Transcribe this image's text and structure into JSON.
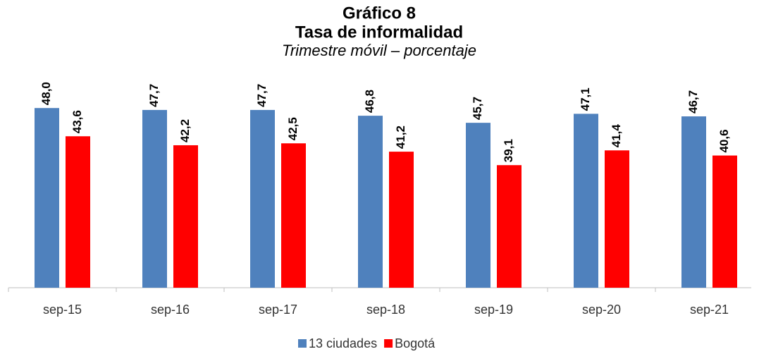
{
  "chart_data": {
    "type": "bar",
    "title": "Gráfico 8",
    "subtitle": "Tasa de informalidad",
    "note": "Trimestre móvil – porcentaje",
    "categories": [
      "sep-15",
      "sep-16",
      "sep-17",
      "sep-18",
      "sep-19",
      "sep-20",
      "sep-21"
    ],
    "series": [
      {
        "name": "13 ciudades",
        "color": "#4f81bd",
        "values": [
          48.0,
          47.7,
          47.7,
          46.8,
          45.7,
          47.1,
          46.7
        ],
        "value_labels": [
          "48,0",
          "47,7",
          "47,7",
          "46,8",
          "45,7",
          "47,1",
          "46,7"
        ]
      },
      {
        "name": "Bogotá",
        "color": "#ff0000",
        "values": [
          43.6,
          42.2,
          42.5,
          41.2,
          39.1,
          41.4,
          40.6
        ],
        "value_labels": [
          "43,6",
          "42,2",
          "42,5",
          "41,2",
          "39,1",
          "41,4",
          "40,6"
        ]
      }
    ],
    "ylim": [
      20,
      50
    ],
    "legend": "bottom"
  }
}
